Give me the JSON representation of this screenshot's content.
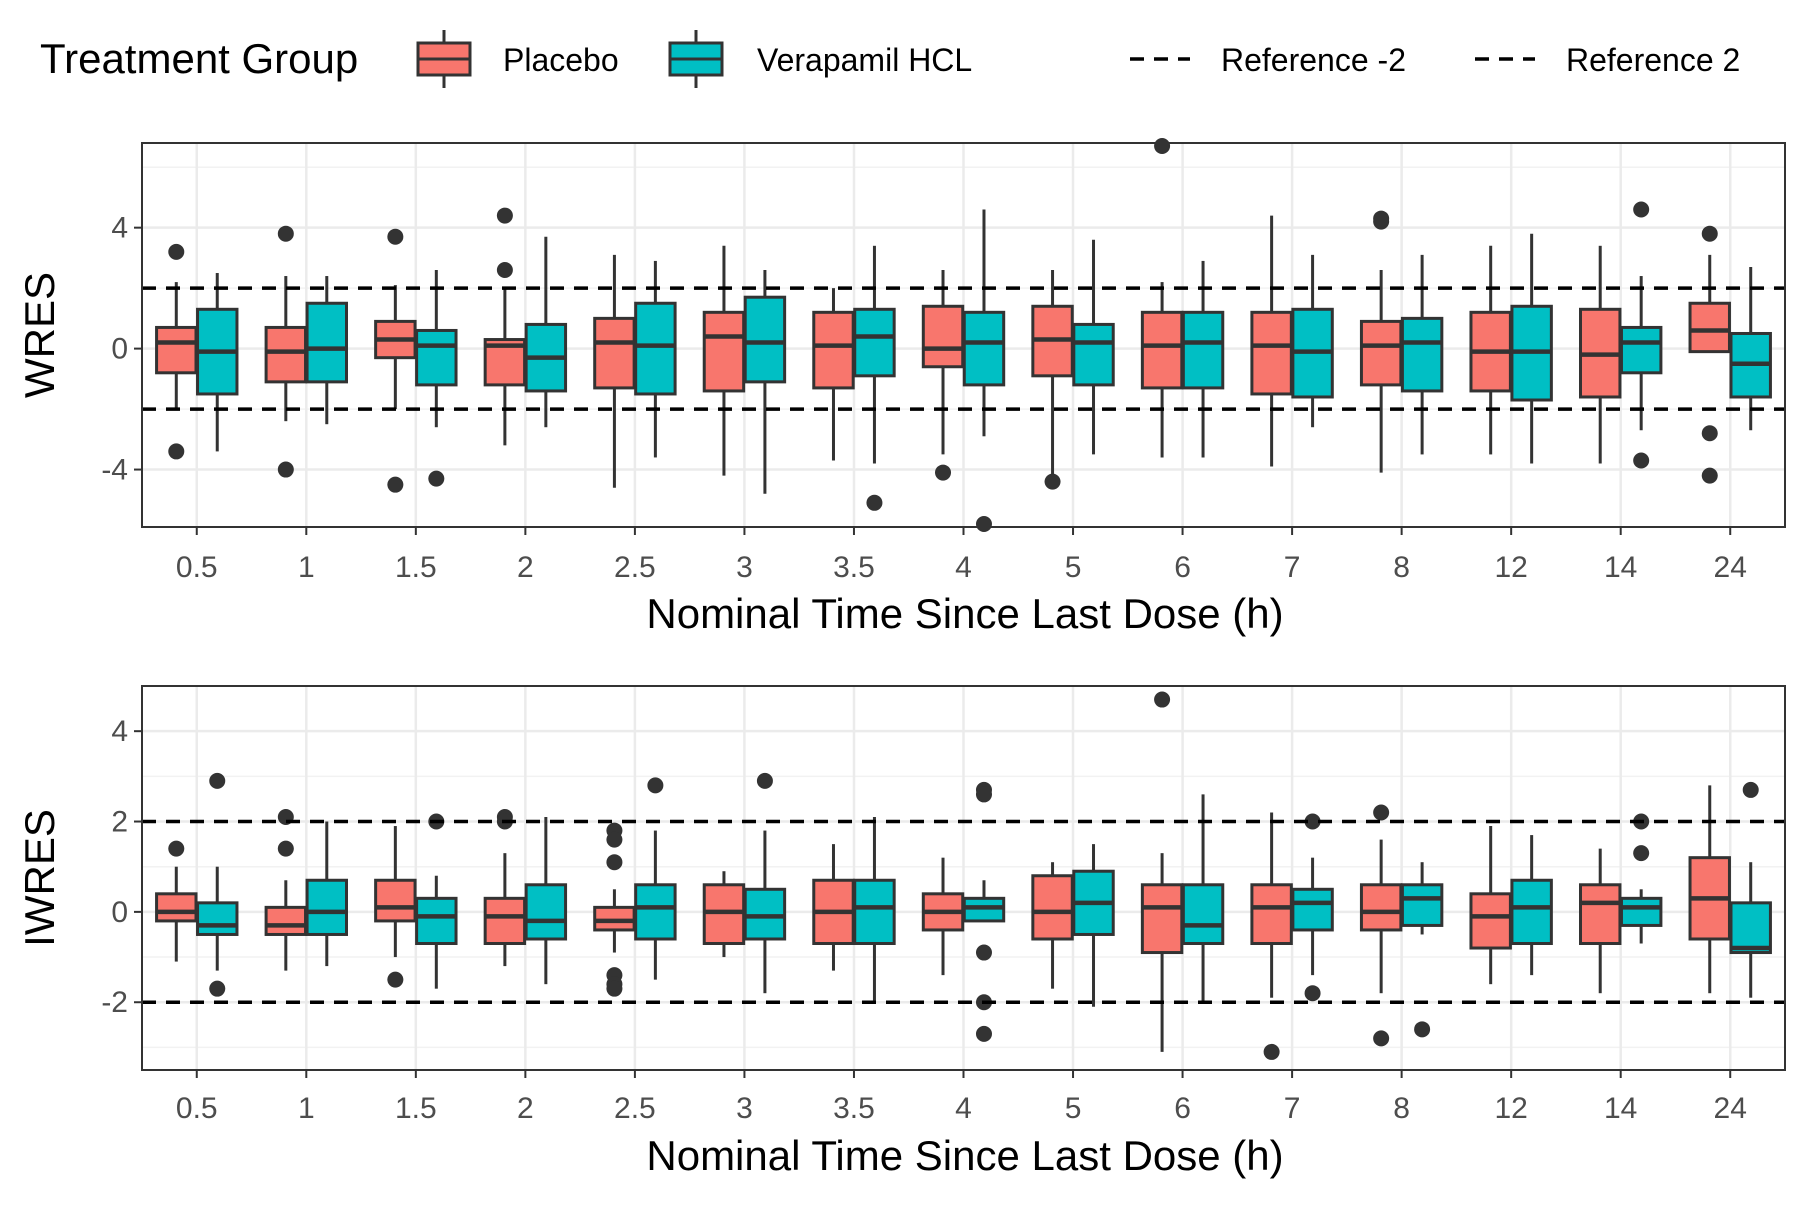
{
  "legend": {
    "title": "Treatment Group",
    "groups": [
      {
        "label": "Placebo",
        "color": "#F8766D"
      },
      {
        "label": "Verapamil HCL",
        "color": "#00BFC4"
      }
    ],
    "references": [
      {
        "label": "Reference -2"
      },
      {
        "label": "Reference 2"
      }
    ]
  },
  "chart_data": [
    {
      "type": "boxplot",
      "xlabel": "Nominal Time Since Last Dose (h)",
      "ylabel": "WRES",
      "ylim": [
        -5.9,
        6.8
      ],
      "yticks": [
        -4,
        0,
        4
      ],
      "categories": [
        "0.5",
        "1",
        "1.5",
        "2",
        "2.5",
        "3",
        "3.5",
        "4",
        "5",
        "6",
        "7",
        "8",
        "12",
        "14",
        "24"
      ],
      "reference_lines": [
        -2,
        2
      ],
      "grid": true,
      "series": [
        {
          "name": "Placebo",
          "boxes": [
            {
              "q1": -0.8,
              "median": 0.2,
              "q3": 0.7,
              "whisker_low": -2.0,
              "whisker_high": 2.2,
              "outliers": [
                3.2,
                -3.4
              ]
            },
            {
              "q1": -1.1,
              "median": -0.1,
              "q3": 0.7,
              "whisker_low": -2.4,
              "whisker_high": 2.4,
              "outliers": [
                3.8,
                -4.0
              ]
            },
            {
              "q1": -0.3,
              "median": 0.3,
              "q3": 0.9,
              "whisker_low": -2.0,
              "whisker_high": 2.1,
              "outliers": [
                3.7,
                -4.5
              ]
            },
            {
              "q1": -1.2,
              "median": 0.1,
              "q3": 0.3,
              "whisker_low": -3.2,
              "whisker_high": 2.0,
              "outliers": [
                4.4,
                2.6
              ]
            },
            {
              "q1": -1.3,
              "median": 0.2,
              "q3": 1.0,
              "whisker_low": -4.6,
              "whisker_high": 3.1,
              "outliers": []
            },
            {
              "q1": -1.4,
              "median": 0.4,
              "q3": 1.2,
              "whisker_low": -4.2,
              "whisker_high": 3.4,
              "outliers": []
            },
            {
              "q1": -1.3,
              "median": 0.1,
              "q3": 1.2,
              "whisker_low": -3.7,
              "whisker_high": 2.0,
              "outliers": []
            },
            {
              "q1": -0.6,
              "median": 0.0,
              "q3": 1.4,
              "whisker_low": -3.5,
              "whisker_high": 2.6,
              "outliers": [
                -4.1
              ]
            },
            {
              "q1": -0.9,
              "median": 0.3,
              "q3": 1.4,
              "whisker_low": -4.4,
              "whisker_high": 2.6,
              "outliers": [
                -4.4
              ]
            },
            {
              "q1": -1.3,
              "median": 0.1,
              "q3": 1.2,
              "whisker_low": -3.6,
              "whisker_high": 2.2,
              "outliers": [
                6.7
              ]
            },
            {
              "q1": -1.5,
              "median": 0.1,
              "q3": 1.2,
              "whisker_low": -3.9,
              "whisker_high": 4.4,
              "outliers": []
            },
            {
              "q1": -1.2,
              "median": 0.1,
              "q3": 0.9,
              "whisker_low": -4.1,
              "whisker_high": 2.6,
              "outliers": [
                4.3,
                4.2
              ]
            },
            {
              "q1": -1.4,
              "median": -0.1,
              "q3": 1.2,
              "whisker_low": -3.5,
              "whisker_high": 3.4,
              "outliers": []
            },
            {
              "q1": -1.6,
              "median": -0.2,
              "q3": 1.3,
              "whisker_low": -3.8,
              "whisker_high": 3.4,
              "outliers": []
            },
            {
              "q1": -0.1,
              "median": 0.6,
              "q3": 1.5,
              "whisker_low": -0.1,
              "whisker_high": 3.1,
              "outliers": [
                3.8,
                -2.8,
                -4.2
              ]
            }
          ]
        },
        {
          "name": "Verapamil HCL",
          "boxes": [
            {
              "q1": -1.5,
              "median": -0.1,
              "q3": 1.3,
              "whisker_low": -3.4,
              "whisker_high": 2.5,
              "outliers": []
            },
            {
              "q1": -1.1,
              "median": 0.0,
              "q3": 1.5,
              "whisker_low": -2.5,
              "whisker_high": 2.4,
              "outliers": []
            },
            {
              "q1": -1.2,
              "median": 0.1,
              "q3": 0.6,
              "whisker_low": -2.6,
              "whisker_high": 2.6,
              "outliers": [
                -4.3
              ]
            },
            {
              "q1": -1.4,
              "median": -0.3,
              "q3": 0.8,
              "whisker_low": -2.6,
              "whisker_high": 3.7,
              "outliers": []
            },
            {
              "q1": -1.5,
              "median": 0.1,
              "q3": 1.5,
              "whisker_low": -3.6,
              "whisker_high": 2.9,
              "outliers": []
            },
            {
              "q1": -1.1,
              "median": 0.2,
              "q3": 1.7,
              "whisker_low": -4.8,
              "whisker_high": 2.6,
              "outliers": []
            },
            {
              "q1": -0.9,
              "median": 0.4,
              "q3": 1.3,
              "whisker_low": -3.8,
              "whisker_high": 3.4,
              "outliers": [
                -5.1
              ]
            },
            {
              "q1": -1.2,
              "median": 0.2,
              "q3": 1.2,
              "whisker_low": -2.9,
              "whisker_high": 4.6,
              "outliers": [
                -5.8
              ]
            },
            {
              "q1": -1.2,
              "median": 0.2,
              "q3": 0.8,
              "whisker_low": -3.5,
              "whisker_high": 3.6,
              "outliers": []
            },
            {
              "q1": -1.3,
              "median": 0.2,
              "q3": 1.2,
              "whisker_low": -3.6,
              "whisker_high": 2.9,
              "outliers": []
            },
            {
              "q1": -1.6,
              "median": -0.1,
              "q3": 1.3,
              "whisker_low": -2.6,
              "whisker_high": 3.1,
              "outliers": []
            },
            {
              "q1": -1.4,
              "median": 0.2,
              "q3": 1.0,
              "whisker_low": -3.5,
              "whisker_high": 3.1,
              "outliers": []
            },
            {
              "q1": -1.7,
              "median": -0.1,
              "q3": 1.4,
              "whisker_low": -3.8,
              "whisker_high": 3.8,
              "outliers": []
            },
            {
              "q1": -0.8,
              "median": 0.2,
              "q3": 0.7,
              "whisker_low": -2.7,
              "whisker_high": 2.4,
              "outliers": [
                4.6,
                -3.7
              ]
            },
            {
              "q1": -1.6,
              "median": -0.5,
              "q3": 0.5,
              "whisker_low": -2.7,
              "whisker_high": 2.7,
              "outliers": []
            }
          ]
        }
      ]
    },
    {
      "type": "boxplot",
      "xlabel": "Nominal Time Since Last Dose (h)",
      "ylabel": "IWRES",
      "ylim": [
        -3.5,
        5.0
      ],
      "yticks": [
        -2,
        0,
        2,
        4
      ],
      "categories": [
        "0.5",
        "1",
        "1.5",
        "2",
        "2.5",
        "3",
        "3.5",
        "4",
        "5",
        "6",
        "7",
        "8",
        "12",
        "14",
        "24"
      ],
      "reference_lines": [
        -2,
        2
      ],
      "grid": true,
      "series": [
        {
          "name": "Placebo",
          "boxes": [
            {
              "q1": -0.2,
              "median": 0.0,
              "q3": 0.4,
              "whisker_low": -1.1,
              "whisker_high": 1.0,
              "outliers": [
                1.4
              ]
            },
            {
              "q1": -0.5,
              "median": -0.3,
              "q3": 0.1,
              "whisker_low": -1.3,
              "whisker_high": 0.7,
              "outliers": [
                2.1,
                1.4
              ]
            },
            {
              "q1": -0.2,
              "median": 0.1,
              "q3": 0.7,
              "whisker_low": -1.0,
              "whisker_high": 1.9,
              "outliers": [
                -1.5
              ]
            },
            {
              "q1": -0.7,
              "median": -0.1,
              "q3": 0.3,
              "whisker_low": -1.2,
              "whisker_high": 1.3,
              "outliers": [
                2.1,
                2.0
              ]
            },
            {
              "q1": -0.4,
              "median": -0.2,
              "q3": 0.1,
              "whisker_low": -0.9,
              "whisker_high": 0.5,
              "outliers": [
                1.8,
                1.6,
                1.1,
                -1.4,
                -1.6,
                -1.7
              ]
            },
            {
              "q1": -0.7,
              "median": 0.0,
              "q3": 0.6,
              "whisker_low": -1.0,
              "whisker_high": 0.9,
              "outliers": []
            },
            {
              "q1": -0.7,
              "median": 0.0,
              "q3": 0.7,
              "whisker_low": -1.3,
              "whisker_high": 1.5,
              "outliers": []
            },
            {
              "q1": -0.4,
              "median": 0.0,
              "q3": 0.4,
              "whisker_low": -1.4,
              "whisker_high": 1.2,
              "outliers": []
            },
            {
              "q1": -0.6,
              "median": 0.0,
              "q3": 0.8,
              "whisker_low": -1.7,
              "whisker_high": 1.1,
              "outliers": []
            },
            {
              "q1": -0.9,
              "median": 0.1,
              "q3": 0.6,
              "whisker_low": -3.1,
              "whisker_high": 1.3,
              "outliers": [
                4.7
              ]
            },
            {
              "q1": -0.7,
              "median": 0.1,
              "q3": 0.6,
              "whisker_low": -1.9,
              "whisker_high": 2.2,
              "outliers": [
                -3.1
              ]
            },
            {
              "q1": -0.4,
              "median": 0.0,
              "q3": 0.6,
              "whisker_low": -1.8,
              "whisker_high": 1.6,
              "outliers": [
                2.2,
                -2.8
              ]
            },
            {
              "q1": -0.8,
              "median": -0.1,
              "q3": 0.4,
              "whisker_low": -1.6,
              "whisker_high": 1.9,
              "outliers": []
            },
            {
              "q1": -0.7,
              "median": 0.2,
              "q3": 0.6,
              "whisker_low": -1.8,
              "whisker_high": 1.4,
              "outliers": []
            },
            {
              "q1": -0.6,
              "median": 0.3,
              "q3": 1.2,
              "whisker_low": -1.8,
              "whisker_high": 2.8,
              "outliers": []
            }
          ]
        },
        {
          "name": "Verapamil HCL",
          "boxes": [
            {
              "q1": -0.5,
              "median": -0.3,
              "q3": 0.2,
              "whisker_low": -1.3,
              "whisker_high": 1.0,
              "outliers": [
                2.9,
                -1.7
              ]
            },
            {
              "q1": -0.5,
              "median": 0.0,
              "q3": 0.7,
              "whisker_low": -1.2,
              "whisker_high": 2.0,
              "outliers": []
            },
            {
              "q1": -0.7,
              "median": -0.1,
              "q3": 0.3,
              "whisker_low": -1.7,
              "whisker_high": 0.8,
              "outliers": [
                2.0
              ]
            },
            {
              "q1": -0.6,
              "median": -0.2,
              "q3": 0.6,
              "whisker_low": -1.6,
              "whisker_high": 2.1,
              "outliers": []
            },
            {
              "q1": -0.6,
              "median": 0.1,
              "q3": 0.6,
              "whisker_low": -1.5,
              "whisker_high": 1.8,
              "outliers": [
                2.8
              ]
            },
            {
              "q1": -0.6,
              "median": -0.1,
              "q3": 0.5,
              "whisker_low": -1.8,
              "whisker_high": 1.8,
              "outliers": [
                2.9
              ]
            },
            {
              "q1": -0.7,
              "median": 0.1,
              "q3": 0.7,
              "whisker_low": -2.0,
              "whisker_high": 2.1,
              "outliers": []
            },
            {
              "q1": -0.2,
              "median": 0.1,
              "q3": 0.3,
              "whisker_low": -0.2,
              "whisker_high": 0.7,
              "outliers": [
                2.7,
                2.6,
                -0.9,
                -2.0,
                -2.7
              ]
            },
            {
              "q1": -0.5,
              "median": 0.2,
              "q3": 0.9,
              "whisker_low": -2.1,
              "whisker_high": 1.5,
              "outliers": []
            },
            {
              "q1": -0.7,
              "median": -0.3,
              "q3": 0.6,
              "whisker_low": -2.0,
              "whisker_high": 2.6,
              "outliers": []
            },
            {
              "q1": -0.4,
              "median": 0.2,
              "q3": 0.5,
              "whisker_low": -1.4,
              "whisker_high": 1.2,
              "outliers": [
                2.0,
                -1.8
              ]
            },
            {
              "q1": -0.3,
              "median": 0.3,
              "q3": 0.6,
              "whisker_low": -0.5,
              "whisker_high": 1.1,
              "outliers": [
                -2.6
              ]
            },
            {
              "q1": -0.7,
              "median": 0.1,
              "q3": 0.7,
              "whisker_low": -1.4,
              "whisker_high": 1.7,
              "outliers": []
            },
            {
              "q1": -0.3,
              "median": 0.1,
              "q3": 0.3,
              "whisker_low": -0.7,
              "whisker_high": 0.5,
              "outliers": [
                2.0,
                1.3
              ]
            },
            {
              "q1": -0.9,
              "median": -0.8,
              "q3": 0.2,
              "whisker_low": -1.9,
              "whisker_high": 1.1,
              "outliers": [
                2.7
              ]
            }
          ]
        }
      ]
    }
  ]
}
